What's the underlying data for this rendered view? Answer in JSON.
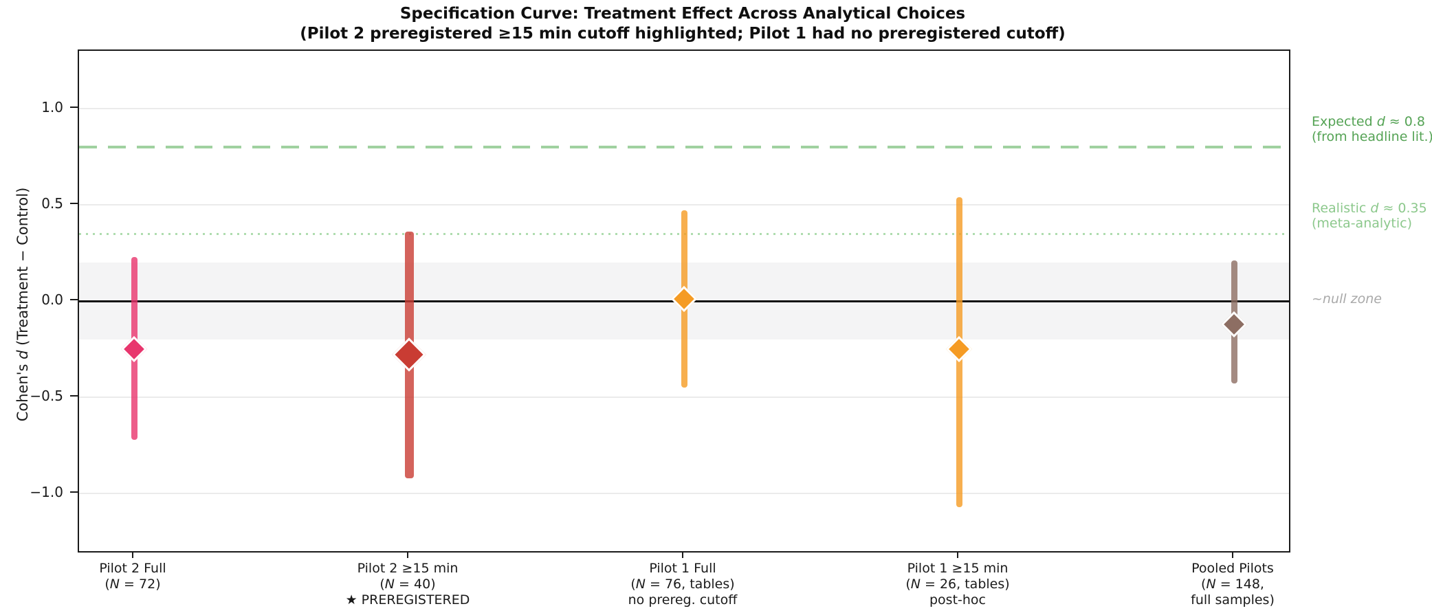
{
  "chart_data": {
    "type": "scatter",
    "variant": "specification-curve-forest-plot",
    "title": "Specification Curve: Treatment Effect Across Analytical Choices",
    "subtitle": "(Pilot 2 preregistered ≥15 min cutoff highlighted; Pilot 1 had no preregistered cutoff)",
    "ylabel": "Cohen's d (Treatment − Control)",
    "xlabel": "",
    "ylim": [
      -1.3,
      1.3
    ],
    "xlim": [
      -0.2,
      4.2
    ],
    "grid": "horizontal",
    "legend": "none",
    "yticks": [
      1.0,
      0.5,
      0.0,
      -0.5,
      -1.0
    ],
    "ytick_labels": [
      "1.0",
      "0.5",
      "0.0",
      "−0.5",
      "−1.0"
    ],
    "categories": [
      [
        "Pilot 2 Full",
        "(N = 72)"
      ],
      [
        "Pilot 2 ≥15 min",
        "(N = 40)",
        "★ PREREGISTERED"
      ],
      [
        "Pilot 1 Full",
        "(N = 76, tables)",
        "no prereg. cutoff"
      ],
      [
        "Pilot 1 ≥15 min",
        "(N = 26, tables)",
        "post-hoc"
      ],
      [
        "Pooled Pilots",
        "(N = 148,",
        "full samples)"
      ]
    ],
    "series": [
      {
        "name": "Pilot 2 Full",
        "x": 0,
        "d": -0.25,
        "ci": [
          -0.72,
          0.23
        ],
        "color": "#e8356d",
        "highlighted": false
      },
      {
        "name": "Pilot 2 ≥15 min",
        "x": 1,
        "d": -0.28,
        "ci": [
          -0.92,
          0.36
        ],
        "color": "#c93c33",
        "highlighted": true
      },
      {
        "name": "Pilot 1 Full",
        "x": 2,
        "d": 0.01,
        "ci": [
          -0.45,
          0.47
        ],
        "color": "#f59b23",
        "highlighted": false
      },
      {
        "name": "Pilot 1 ≥15 min",
        "x": 3,
        "d": -0.25,
        "ci": [
          -1.07,
          0.54
        ],
        "color": "#f59b23",
        "highlighted": false
      },
      {
        "name": "Pooled Pilots",
        "x": 4,
        "d": -0.12,
        "ci": [
          -0.43,
          0.21
        ],
        "color": "#8d6e63",
        "highlighted": false
      }
    ],
    "reference_lines": [
      {
        "value": 0.8,
        "style": "dashed",
        "color": "#8fc98f",
        "label_lines": [
          "Expected d ≈ 0.8",
          "(from headline lit.)"
        ],
        "label_color": "#55a355"
      },
      {
        "value": 0.35,
        "style": "dotted",
        "color": "#aedcae",
        "label_lines": [
          "Realistic d ≈ 0.35",
          "(meta-analytic)"
        ],
        "label_color": "#8cc88c"
      },
      {
        "value": 0.0,
        "style": "solid",
        "color": "#111111",
        "label_lines": [],
        "label_color": "#111111"
      }
    ],
    "null_band": {
      "from": -0.2,
      "to": 0.2,
      "color": "#f4f4f5",
      "label": "~null zone",
      "label_color": "#a9a9a9"
    }
  }
}
